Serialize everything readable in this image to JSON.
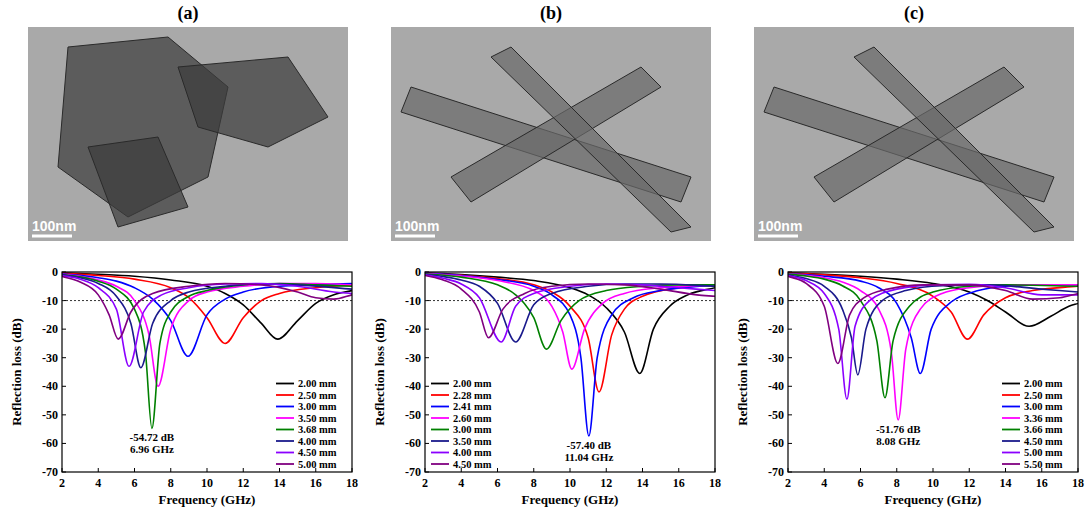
{
  "panels": [
    {
      "label": "(a)",
      "scale_bar": "100nm"
    },
    {
      "label": "(b)",
      "scale_bar": "100nm"
    },
    {
      "label": "(c)",
      "scale_bar": "100nm"
    }
  ],
  "chart_data": [
    {
      "type": "line",
      "x_label": "Frequency (GHz)",
      "y_label": "Reflection loss (dB)",
      "xlim": [
        2,
        18
      ],
      "ylim": [
        -70,
        0
      ],
      "xticks": [
        2,
        4,
        6,
        8,
        10,
        12,
        14,
        16,
        18
      ],
      "yticks": [
        0,
        -10,
        -20,
        -30,
        -40,
        -50,
        -60,
        -70
      ],
      "reference_line": -10,
      "legend": "lower right",
      "annotation": {
        "text": [
          "-54.72 dB",
          "6.96 GHz"
        ],
        "x": 6.96,
        "y": -54.72
      },
      "series": [
        {
          "name": "2.00 mm",
          "color": "#000000",
          "x": [
            2,
            4,
            6,
            8,
            10,
            11,
            12,
            13,
            13.9,
            15,
            16,
            17,
            18
          ],
          "values": [
            -0.3,
            -0.8,
            -1.5,
            -2.8,
            -5,
            -7.5,
            -11.5,
            -18,
            -23.5,
            -17,
            -11,
            -8,
            -6.5
          ]
        },
        {
          "name": "2.50 mm",
          "color": "#ff0000",
          "x": [
            2,
            4,
            6,
            8,
            9,
            10,
            11,
            12,
            13,
            14,
            16,
            18
          ],
          "values": [
            -0.4,
            -1.2,
            -2.5,
            -5.5,
            -9,
            -16,
            -25,
            -16,
            -10,
            -7.5,
            -5.5,
            -4.5
          ]
        },
        {
          "name": "3.00 mm",
          "color": "#0000ff",
          "x": [
            2,
            4,
            5,
            6,
            7,
            8,
            8.95,
            10,
            11,
            12,
            14,
            16,
            18
          ],
          "values": [
            -0.6,
            -2,
            -3.2,
            -5.5,
            -9.5,
            -17,
            -29.5,
            -15,
            -9.5,
            -7,
            -5,
            -4.5,
            -4
          ]
        },
        {
          "name": "3.50 mm",
          "color": "#ff00ff",
          "x": [
            2,
            3,
            4,
            5,
            6,
            6.8,
            7.3,
            8,
            9,
            10,
            12,
            14,
            16,
            18
          ],
          "values": [
            -0.8,
            -1.5,
            -2.8,
            -5,
            -10,
            -22,
            -40,
            -20,
            -10,
            -7,
            -5,
            -4,
            -4,
            -4.5
          ]
        },
        {
          "name": "3.68 mm",
          "color": "#008000",
          "x": [
            2,
            3,
            4,
            5,
            6,
            6.6,
            6.96,
            7.4,
            8,
            9,
            10,
            12,
            14,
            16,
            18
          ],
          "values": [
            -0.9,
            -1.7,
            -3.2,
            -6,
            -13,
            -28,
            -54.72,
            -25,
            -14,
            -8.5,
            -6.5,
            -4.5,
            -4,
            -4.5,
            -5
          ]
        },
        {
          "name": "4.00 mm",
          "color": "#1a1a8c",
          "x": [
            2,
            3,
            4,
            5,
            5.8,
            6.35,
            7,
            8,
            9,
            11,
            13,
            15,
            18
          ],
          "values": [
            -1,
            -2,
            -4,
            -8.5,
            -18,
            -33.5,
            -18,
            -10,
            -7,
            -5,
            -4.2,
            -4.5,
            -6
          ]
        },
        {
          "name": "4.50 mm",
          "color": "#8b00ff",
          "x": [
            2,
            3,
            4,
            5,
            5.7,
            6.5,
            7.5,
            9,
            11,
            13,
            15,
            17,
            18
          ],
          "values": [
            -1.2,
            -2.5,
            -5.5,
            -13,
            -33,
            -14,
            -8,
            -5.5,
            -4.2,
            -4,
            -5,
            -7,
            -7.5
          ]
        },
        {
          "name": "5.00 mm",
          "color": "#800080",
          "x": [
            2,
            3,
            4,
            4.6,
            5.1,
            5.8,
            7,
            9,
            11,
            13,
            15,
            16,
            17,
            18
          ],
          "values": [
            -1.5,
            -3.5,
            -8,
            -15,
            -23.5,
            -14,
            -7.5,
            -5,
            -4,
            -4.5,
            -7,
            -9,
            -9.5,
            -8
          ]
        }
      ]
    },
    {
      "type": "line",
      "x_label": "Frequency (GHz)",
      "y_label": "Reflection loss (dB)",
      "xlim": [
        2,
        18
      ],
      "ylim": [
        -70,
        0
      ],
      "xticks": [
        2,
        4,
        6,
        8,
        10,
        12,
        14,
        16,
        18
      ],
      "yticks": [
        0,
        -10,
        -20,
        -30,
        -40,
        -50,
        -60,
        -70
      ],
      "reference_line": -10,
      "legend": "lower left",
      "annotation": {
        "text": [
          "-57.40 dB",
          "11.04 GHz"
        ],
        "x": 11.04,
        "y": -57.4
      },
      "series": [
        {
          "name": "2.00 mm",
          "color": "#000000",
          "x": [
            2,
            4,
            6,
            8,
            10,
            11,
            12,
            13,
            13.85,
            14.6,
            15.5,
            16.5,
            18
          ],
          "values": [
            -0.3,
            -0.9,
            -1.8,
            -3,
            -5.5,
            -8,
            -12.5,
            -21,
            -35.5,
            -20,
            -12,
            -8,
            -5.5
          ]
        },
        {
          "name": "2.28 mm",
          "color": "#ff0000",
          "x": [
            2,
            4,
            6,
            8,
            9,
            10,
            11,
            11.6,
            12.3,
            13,
            14,
            16,
            18
          ],
          "values": [
            -0.4,
            -1.1,
            -2.3,
            -4.5,
            -7,
            -12,
            -23,
            -42,
            -22,
            -13,
            -8.5,
            -5.5,
            -4.5
          ]
        },
        {
          "name": "2.41 mm",
          "color": "#0000ff",
          "x": [
            2,
            4,
            6,
            8,
            9,
            10,
            10.6,
            11.04,
            11.5,
            12.3,
            13.5,
            15,
            18
          ],
          "values": [
            -0.4,
            -1.2,
            -2.6,
            -5,
            -8,
            -15,
            -30,
            -57.4,
            -30,
            -15,
            -9,
            -6.5,
            -4.5
          ]
        },
        {
          "name": "2.60 mm",
          "color": "#ff00ff",
          "x": [
            2,
            4,
            6,
            8,
            9,
            9.6,
            10.1,
            10.8,
            11.8,
            13,
            15,
            18
          ],
          "values": [
            -0.5,
            -1.4,
            -3,
            -6.5,
            -12,
            -21,
            -34,
            -20,
            -11,
            -7.5,
            -5.5,
            -4.5
          ]
        },
        {
          "name": "3.00 mm",
          "color": "#008000",
          "x": [
            2,
            4,
            6,
            7,
            8,
            8.7,
            9.5,
            10.5,
            12,
            14,
            16,
            18
          ],
          "values": [
            -0.6,
            -1.8,
            -4.5,
            -8,
            -16,
            -27,
            -17,
            -10,
            -6.5,
            -5,
            -4.5,
            -4.5
          ]
        },
        {
          "name": "3.50 mm",
          "color": "#1a1a8c",
          "x": [
            2,
            3,
            4,
            5,
            6,
            7,
            8,
            9,
            11,
            13,
            15,
            18
          ],
          "values": [
            -0.8,
            -1.6,
            -2.8,
            -5,
            -11,
            -24.5,
            -11.5,
            -7.5,
            -5,
            -4.2,
            -4.2,
            -5
          ]
        },
        {
          "name": "4.00 mm",
          "color": "#8b00ff",
          "x": [
            2,
            3,
            4,
            5,
            6.2,
            7,
            8,
            10,
            12,
            14,
            16,
            18
          ],
          "values": [
            -1,
            -2.2,
            -4.2,
            -9,
            -24.5,
            -12,
            -7.5,
            -5,
            -4.2,
            -4.5,
            -5.5,
            -6.5
          ]
        },
        {
          "name": "4.50 mm",
          "color": "#800080",
          "x": [
            2,
            3,
            4,
            5,
            5.5,
            6.3,
            7.5,
            9,
            11,
            13,
            15,
            17,
            18
          ],
          "values": [
            -1.2,
            -2.8,
            -6,
            -14,
            -23,
            -13,
            -7.5,
            -5,
            -4.2,
            -4.5,
            -6,
            -8,
            -8.5
          ]
        }
      ]
    },
    {
      "type": "line",
      "x_label": "Frequency (GHz)",
      "y_label": "Reflection loss (dB)",
      "xlim": [
        2,
        18
      ],
      "ylim": [
        -70,
        0
      ],
      "xticks": [
        2,
        4,
        6,
        8,
        10,
        12,
        14,
        16,
        18
      ],
      "yticks": [
        0,
        -10,
        -20,
        -30,
        -40,
        -50,
        -60,
        -70
      ],
      "reference_line": -10,
      "legend": "lower right",
      "annotation": {
        "text": [
          "-51.76 dB",
          "8.08 GHz"
        ],
        "x": 8.08,
        "y": -51.76
      },
      "series": [
        {
          "name": "2.00 mm",
          "color": "#000000",
          "x": [
            2,
            4,
            6,
            8,
            10,
            12,
            13,
            14,
            15.3,
            16.5,
            17.5,
            18
          ],
          "values": [
            -0.3,
            -0.8,
            -1.5,
            -2.5,
            -4,
            -7,
            -10,
            -14,
            -19,
            -15.5,
            -12,
            -11
          ]
        },
        {
          "name": "2.50 mm",
          "color": "#ff0000",
          "x": [
            2,
            4,
            6,
            8,
            10,
            11,
            11.9,
            12.8,
            14,
            15.5,
            18
          ],
          "values": [
            -0.4,
            -1,
            -2,
            -4,
            -8.5,
            -14,
            -23.5,
            -15,
            -9,
            -6.5,
            -5
          ]
        },
        {
          "name": "3.00 mm",
          "color": "#0000ff",
          "x": [
            2,
            4,
            6,
            7,
            8,
            8.8,
            9.3,
            9.9,
            11,
            12.5,
            14,
            16,
            18
          ],
          "values": [
            -0.5,
            -1.5,
            -3.2,
            -5.5,
            -11,
            -23,
            -35.5,
            -20,
            -10.5,
            -6.5,
            -5,
            -4.5,
            -4.5
          ]
        },
        {
          "name": "3.36 mm",
          "color": "#ff00ff",
          "x": [
            2,
            4,
            5,
            6,
            7,
            7.7,
            8.08,
            8.5,
            9.3,
            10.5,
            12,
            14,
            18
          ],
          "values": [
            -0.6,
            -2,
            -3.5,
            -6.5,
            -13,
            -28,
            -51.76,
            -27,
            -13,
            -7.5,
            -5.5,
            -4.5,
            -4.5
          ]
        },
        {
          "name": "3.66 mm",
          "color": "#008000",
          "x": [
            2,
            3,
            4,
            5,
            6,
            6.9,
            7.35,
            7.8,
            8.7,
            10,
            12,
            14,
            18
          ],
          "values": [
            -0.7,
            -1.4,
            -2.5,
            -4.8,
            -10,
            -24,
            -44,
            -24,
            -12,
            -7,
            -5,
            -4.5,
            -5
          ]
        },
        {
          "name": "4.50 mm",
          "color": "#1a1a8c",
          "x": [
            2,
            3,
            4,
            5,
            5.5,
            5.85,
            6.3,
            7.2,
            8.5,
            10.5,
            13,
            16,
            18
          ],
          "values": [
            -1,
            -2.3,
            -5,
            -13,
            -23,
            -36,
            -20,
            -10,
            -6.5,
            -4.8,
            -4.5,
            -6,
            -7
          ]
        },
        {
          "name": "5.00 mm",
          "color": "#8b00ff",
          "x": [
            2,
            3,
            4,
            4.8,
            5.25,
            5.7,
            6.5,
            8,
            10,
            12,
            14,
            16,
            18
          ],
          "values": [
            -1.2,
            -3,
            -7.5,
            -20,
            -44.5,
            -19,
            -10,
            -6,
            -4.5,
            -4.3,
            -5.5,
            -8,
            -8
          ]
        },
        {
          "name": "5.50 mm",
          "color": "#800080",
          "x": [
            2,
            3,
            4,
            4.75,
            5.4,
            6.2,
            7.5,
            9.5,
            12,
            14,
            15.5,
            17,
            18
          ],
          "values": [
            -1.5,
            -4,
            -12,
            -32,
            -15,
            -9,
            -6,
            -4.5,
            -4.5,
            -6.5,
            -9.5,
            -9,
            -7.5
          ]
        }
      ]
    }
  ]
}
